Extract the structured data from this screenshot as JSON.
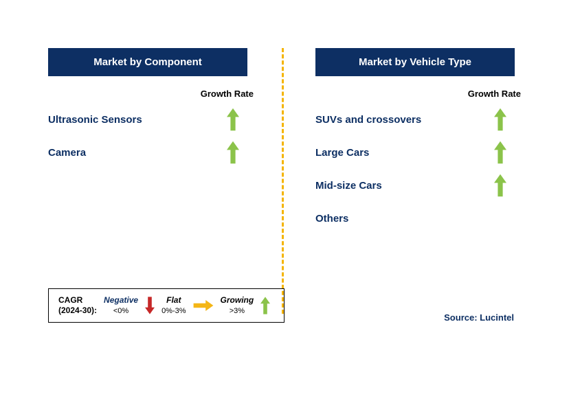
{
  "colors": {
    "header_bg": "#0d2f63",
    "label_color": "#0d2f63",
    "divider_color": "#f4b400",
    "arrow_green": "#8bc34a",
    "arrow_red": "#c62828",
    "arrow_yellow": "#f4b616"
  },
  "left_panel": {
    "title": "Market by Component",
    "growth_label": "Growth Rate",
    "rows": [
      {
        "label": "Ultrasonic Sensors",
        "trend": "up"
      },
      {
        "label": "Camera",
        "trend": "up"
      }
    ]
  },
  "right_panel": {
    "title": "Market by Vehicle Type",
    "growth_label": "Growth Rate",
    "rows": [
      {
        "label": "SUVs and crossovers",
        "trend": "up"
      },
      {
        "label": "Large Cars",
        "trend": "up"
      },
      {
        "label": "Mid-size Cars",
        "trend": "up"
      },
      {
        "label": "Others",
        "trend": null
      }
    ]
  },
  "legend": {
    "cagr_label": "CAGR",
    "cagr_period": "(2024-30):",
    "negative_label": "Negative",
    "negative_range": "<0%",
    "flat_label": "Flat",
    "flat_range": "0%-3%",
    "growing_label": "Growing",
    "growing_range": ">3%"
  },
  "source": "Source: Lucintel"
}
